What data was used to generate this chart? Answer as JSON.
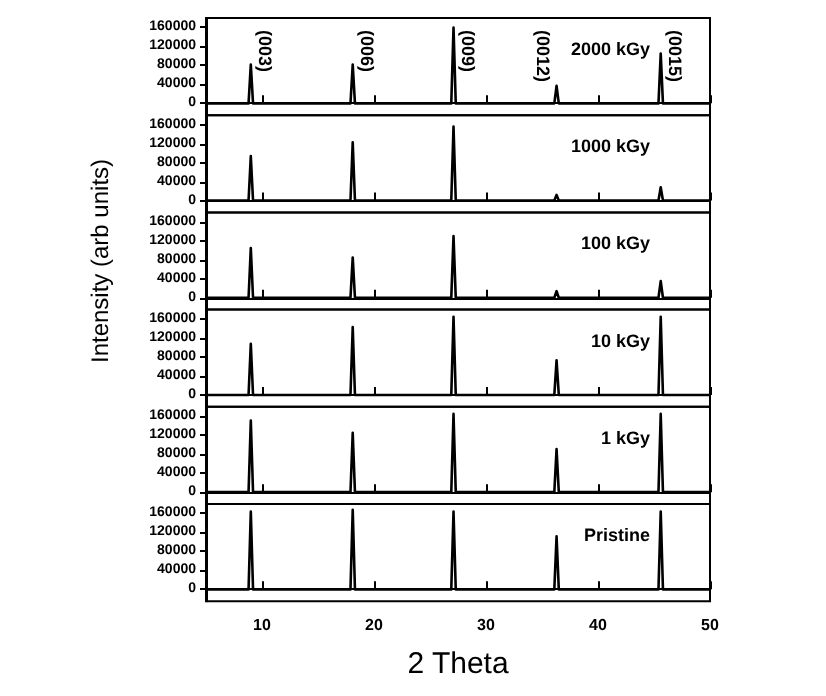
{
  "chart_data": [
    {
      "type": "line",
      "x": [
        5,
        8.8,
        9.0,
        9.2,
        17.9,
        18.1,
        18.3,
        26.9,
        27.1,
        27.3,
        36.1,
        36.3,
        36.5,
        45.4,
        45.6,
        45.8,
        50
      ],
      "series": [
        {
          "color": "#000000",
          "values": [
            0,
            0,
            82000,
            0,
            0,
            82000,
            0,
            0,
            160000,
            0,
            0,
            37000,
            0,
            0,
            105000,
            0,
            0
          ]
        }
      ],
      "xlim": [
        5,
        50
      ],
      "xticks": [
        10,
        20,
        30,
        40,
        50
      ],
      "ylim": [
        -25000,
        180000
      ],
      "yticks": [
        0,
        40000,
        80000,
        120000,
        160000
      ],
      "tick_labels": "y",
      "annotations": [
        "2000 kGy",
        "(003)",
        "(006)",
        "(009)",
        "(0012)",
        "(0015)"
      ]
    },
    {
      "type": "line",
      "x": [
        5,
        8.8,
        9.0,
        9.2,
        17.9,
        18.1,
        18.3,
        26.9,
        27.1,
        27.3,
        36.1,
        36.3,
        36.5,
        45.4,
        45.6,
        45.8,
        50
      ],
      "series": [
        {
          "color": "#000000",
          "values": [
            0,
            0,
            94000,
            0,
            0,
            123000,
            0,
            0,
            156000,
            0,
            0,
            12000,
            0,
            0,
            28000,
            0,
            0
          ]
        }
      ],
      "xlim": [
        5,
        50
      ],
      "xticks": [
        10,
        20,
        30,
        40,
        50
      ],
      "ylim": [
        -25000,
        180000
      ],
      "yticks": [
        0,
        40000,
        80000,
        120000,
        160000
      ],
      "tick_labels": "y",
      "annotations": [
        "1000 kGy"
      ]
    },
    {
      "type": "line",
      "x": [
        5,
        8.8,
        9.0,
        9.2,
        17.9,
        18.1,
        18.3,
        26.9,
        27.1,
        27.3,
        36.1,
        36.3,
        36.5,
        45.4,
        45.6,
        45.8,
        50
      ],
      "series": [
        {
          "color": "#000000",
          "values": [
            0,
            0,
            105000,
            0,
            0,
            85000,
            0,
            0,
            130000,
            0,
            0,
            14000,
            0,
            0,
            35000,
            0,
            0
          ]
        }
      ],
      "xlim": [
        5,
        50
      ],
      "xticks": [
        10,
        20,
        30,
        40,
        50
      ],
      "ylim": [
        -25000,
        180000
      ],
      "yticks": [
        0,
        40000,
        80000,
        120000,
        160000
      ],
      "tick_labels": "y",
      "ylabel": "Intensity (arb units)",
      "annotations": [
        "100 kGy"
      ]
    },
    {
      "type": "line",
      "x": [
        5,
        8.8,
        9.0,
        9.2,
        17.9,
        18.1,
        18.3,
        26.9,
        27.1,
        27.3,
        36.1,
        36.3,
        36.5,
        45.4,
        45.6,
        45.8,
        50
      ],
      "series": [
        {
          "color": "#000000",
          "values": [
            0,
            0,
            108000,
            0,
            0,
            143000,
            0,
            0,
            165000,
            0,
            0,
            73000,
            0,
            0,
            165000,
            0,
            0
          ]
        }
      ],
      "xlim": [
        5,
        50
      ],
      "xticks": [
        10,
        20,
        30,
        40,
        50
      ],
      "ylim": [
        -25000,
        180000
      ],
      "yticks": [
        0,
        40000,
        80000,
        120000,
        160000
      ],
      "tick_labels": "y",
      "annotations": [
        "10 kGy"
      ]
    },
    {
      "type": "line",
      "x": [
        5,
        8.8,
        9.0,
        9.2,
        17.9,
        18.1,
        18.3,
        26.9,
        27.1,
        27.3,
        36.1,
        36.3,
        36.5,
        45.4,
        45.6,
        45.8,
        50
      ],
      "series": [
        {
          "color": "#000000",
          "values": [
            0,
            0,
            151000,
            0,
            0,
            125000,
            0,
            0,
            165000,
            0,
            0,
            91000,
            0,
            0,
            165000,
            0,
            0
          ]
        }
      ],
      "xlim": [
        5,
        50
      ],
      "xticks": [
        10,
        20,
        30,
        40,
        50
      ],
      "ylim": [
        -25000,
        180000
      ],
      "yticks": [
        0,
        40000,
        80000,
        120000,
        160000
      ],
      "tick_labels": "y",
      "annotations": [
        "1 kGy"
      ]
    },
    {
      "type": "line",
      "x": [
        5,
        8.8,
        9.0,
        9.2,
        17.9,
        18.1,
        18.3,
        26.9,
        27.1,
        27.3,
        36.1,
        36.3,
        36.5,
        45.4,
        45.6,
        45.8,
        50
      ],
      "series": [
        {
          "color": "#000000",
          "values": [
            0,
            0,
            164000,
            0,
            0,
            168000,
            0,
            0,
            164000,
            0,
            0,
            112000,
            0,
            0,
            164000,
            0,
            0
          ]
        }
      ],
      "xlim": [
        5,
        50
      ],
      "xticks": [
        10,
        20,
        30,
        40,
        50
      ],
      "ylim": [
        -25000,
        180000
      ],
      "yticks": [
        0,
        40000,
        80000,
        120000,
        160000
      ],
      "xlabel": "2 Theta",
      "annotations": [
        "Pristine"
      ]
    }
  ]
}
